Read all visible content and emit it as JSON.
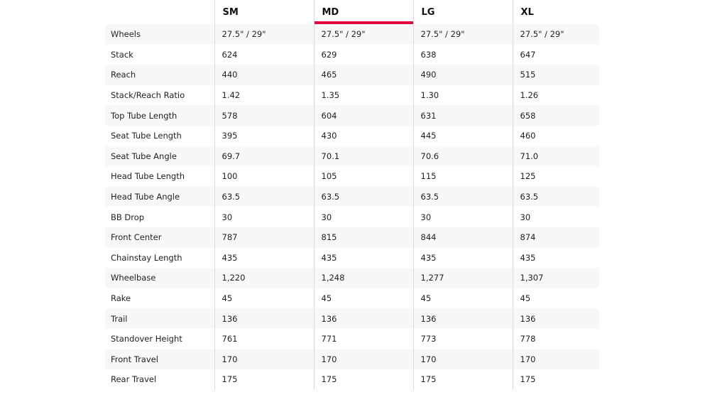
{
  "colors": {
    "accent": "#e8063c"
  },
  "sizes": [
    "SM",
    "MD",
    "LG",
    "XL"
  ],
  "active_size": "MD",
  "rows": [
    {
      "label": "Wheels",
      "values": [
        "27.5\" / 29\"",
        "27.5\" / 29\"",
        "27.5\" / 29\"",
        "27.5\" / 29\""
      ]
    },
    {
      "label": "Stack",
      "values": [
        "624",
        "629",
        "638",
        "647"
      ]
    },
    {
      "label": "Reach",
      "values": [
        "440",
        "465",
        "490",
        "515"
      ]
    },
    {
      "label": "Stack/Reach Ratio",
      "values": [
        "1.42",
        "1.35",
        "1.30",
        "1.26"
      ]
    },
    {
      "label": "Top Tube Length",
      "values": [
        "578",
        "604",
        "631",
        "658"
      ]
    },
    {
      "label": "Seat Tube Length",
      "values": [
        "395",
        "430",
        "445",
        "460"
      ]
    },
    {
      "label": "Seat Tube Angle",
      "values": [
        "69.7",
        "70.1",
        "70.6",
        "71.0"
      ]
    },
    {
      "label": "Head Tube Length",
      "values": [
        "100",
        "105",
        "115",
        "125"
      ]
    },
    {
      "label": "Head Tube Angle",
      "values": [
        "63.5",
        "63.5",
        "63.5",
        "63.5"
      ]
    },
    {
      "label": "BB Drop",
      "values": [
        "30",
        "30",
        "30",
        "30"
      ]
    },
    {
      "label": "Front Center",
      "values": [
        "787",
        "815",
        "844",
        "874"
      ]
    },
    {
      "label": "Chainstay Length",
      "values": [
        "435",
        "435",
        "435",
        "435"
      ]
    },
    {
      "label": "Wheelbase",
      "values": [
        "1,220",
        "1,248",
        "1,277",
        "1,307"
      ]
    },
    {
      "label": "Rake",
      "values": [
        "45",
        "45",
        "45",
        "45"
      ]
    },
    {
      "label": "Trail",
      "values": [
        "136",
        "136",
        "136",
        "136"
      ]
    },
    {
      "label": "Standover Height",
      "values": [
        "761",
        "771",
        "773",
        "778"
      ]
    },
    {
      "label": "Front Travel",
      "values": [
        "170",
        "170",
        "170",
        "170"
      ]
    },
    {
      "label": "Rear Travel",
      "values": [
        "175",
        "175",
        "175",
        "175"
      ]
    }
  ]
}
